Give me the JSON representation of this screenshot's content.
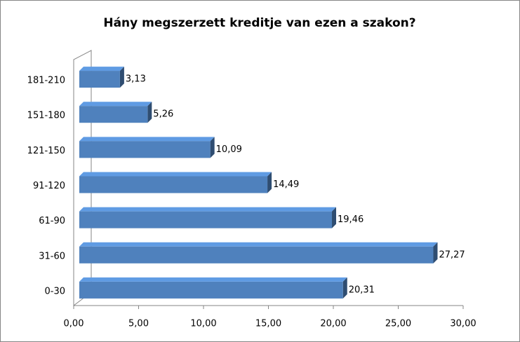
{
  "chart_data": {
    "type": "bar",
    "orientation": "horizontal",
    "title": "Hány megszerzett kreditje van ezen a szakon?",
    "categories": [
      "0-30",
      "31-60",
      "61-90",
      "91-120",
      "121-150",
      "151-180",
      "181-210"
    ],
    "values": [
      20.31,
      27.27,
      19.46,
      14.49,
      10.09,
      5.26,
      3.13
    ],
    "value_labels": [
      "20,31",
      "27,27",
      "19,46",
      "14,49",
      "10,09",
      "5,26",
      "3,13"
    ],
    "color": "#4f81bd",
    "xlim": [
      0,
      30
    ],
    "xticks": [
      {
        "value": 0,
        "label": "0,00"
      },
      {
        "value": 5,
        "label": "5,00"
      },
      {
        "value": 10,
        "label": "10,00"
      },
      {
        "value": 15,
        "label": "15,00"
      },
      {
        "value": 20,
        "label": "20,00"
      },
      {
        "value": 25,
        "label": "25,00"
      },
      {
        "value": 30,
        "label": "30,00"
      }
    ],
    "grid": false
  }
}
